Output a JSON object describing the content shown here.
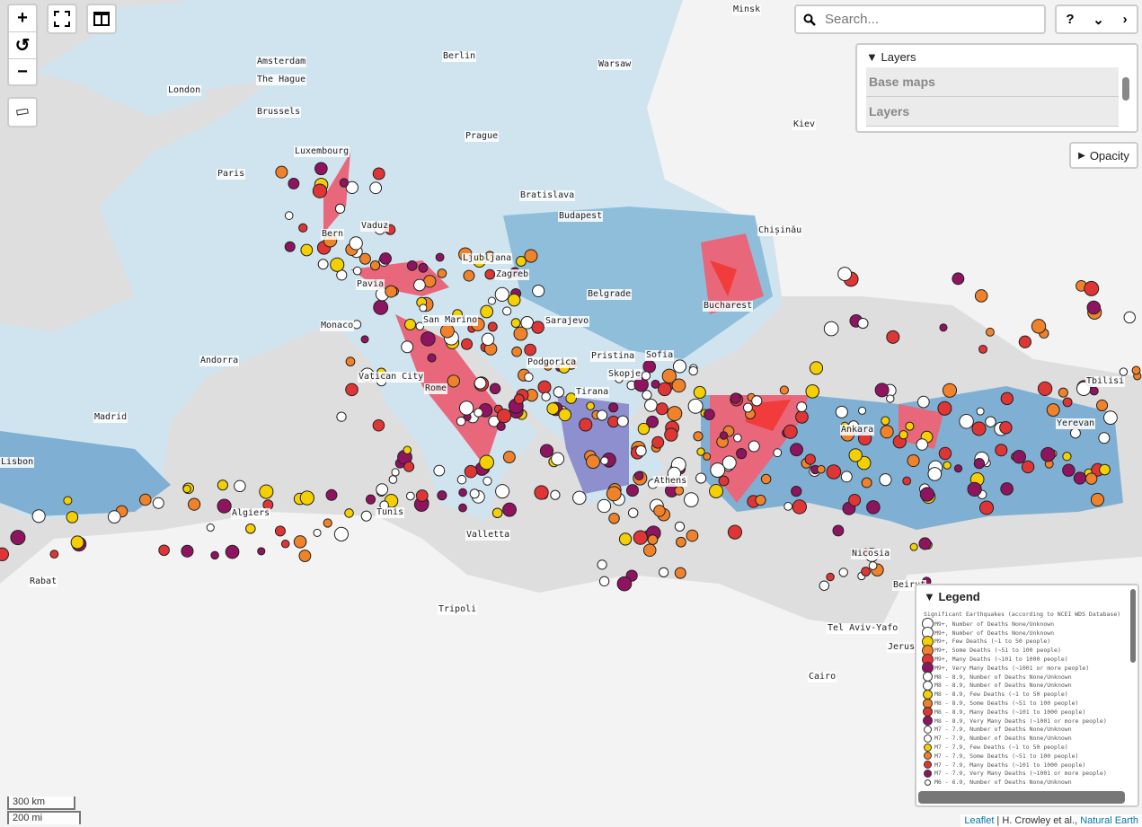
{
  "controls": {
    "zoom_in": "+",
    "reset": "↺",
    "zoom_out": "−",
    "fullscreen_icon": "fullscreen-icon",
    "split_icon": "split-view-icon",
    "measure_icon": "ruler-icon"
  },
  "search": {
    "placeholder": "Search...",
    "value": ""
  },
  "tools": {
    "help": "?",
    "collapse": "⌄",
    "next": "›"
  },
  "layers_panel": {
    "title": "Layers",
    "items": [
      {
        "label": "Base maps"
      },
      {
        "label": "Layers"
      }
    ]
  },
  "opacity": {
    "label": "Opacity"
  },
  "legend": {
    "title": "Legend",
    "subtitle": "Significant Earthquakes (according to NCEI WDS Database)",
    "items": [
      {
        "label": "M9+, Number of Deaths None/Unknown",
        "color": "#ffffff"
      },
      {
        "label": "M9+, Number of Deaths None/Unknown",
        "color": "#ffffff"
      },
      {
        "label": "M9+, Few Deaths (~1 to 50 people)",
        "color": "#f5d000"
      },
      {
        "label": "M9+, Some Deaths (~51 to 100 people)",
        "color": "#f0822a"
      },
      {
        "label": "M9+, Many Deaths (~101 to 1000 people)",
        "color": "#e03535"
      },
      {
        "label": "M9+, Very Many Deaths (~1001 or more people)",
        "color": "#8e1460"
      },
      {
        "label": "M8 - 8.9, Number of Deaths None/Unknown",
        "color": "#ffffff"
      },
      {
        "label": "M8 - 8.9, Number of Deaths None/Unknown",
        "color": "#ffffff"
      },
      {
        "label": "M8 - 8.9, Few Deaths (~1 to 50 people)",
        "color": "#f5d000"
      },
      {
        "label": "M8 - 8.9, Some Deaths (~51 to 100 people)",
        "color": "#f0822a"
      },
      {
        "label": "M8 - 8.9, Many Deaths (~101 to 1000 people)",
        "color": "#e03535"
      },
      {
        "label": "M8 - 8.9, Very Many Deaths (~1001 or more people)",
        "color": "#8e1460"
      },
      {
        "label": "M7 - 7.9, Number of Deaths None/Unknown",
        "color": "#ffffff"
      },
      {
        "label": "M7 - 7.9, Number of Deaths None/Unknown",
        "color": "#ffffff"
      },
      {
        "label": "M7 - 7.9, Few Deaths (~1 to 50 people)",
        "color": "#f5d000"
      },
      {
        "label": "M7 - 7.9, Some Deaths (~51 to 100 people)",
        "color": "#f0822a"
      },
      {
        "label": "M7 - 7.9, Many Deaths (~101 to 1000 people)",
        "color": "#e03535"
      },
      {
        "label": "M7 - 7.9, Very Many Deaths (~1001 or more people)",
        "color": "#8e1460"
      },
      {
        "label": "M6 - 6.9, Number of Deaths None/Unknown",
        "color": "#ffffff"
      }
    ]
  },
  "cities": [
    "Minsk",
    "Berlin",
    "Amsterdam",
    "The Hague",
    "Warsaw",
    "London",
    "Brussels",
    "Prague",
    "Kiev",
    "Luxembourg",
    "Paris",
    "Bratislava",
    "Budapest",
    "Vaduz",
    "Bern",
    "Chișinău",
    "Ljubljana",
    "Zagreb",
    "Pavia",
    "Belgrade",
    "Bucharest",
    "San Marino",
    "Sarajevo",
    "Monaco",
    "Sofia",
    "Pristina",
    "Andorra",
    "Podgorica",
    "Skopje",
    "Vatican City",
    "Rome",
    "Tirana",
    "Tbilisi",
    "Madrid",
    "Yerevan",
    "Ankara",
    "Athens",
    "Algiers",
    "Tunis",
    "Valletta",
    "Nicosia",
    "Rabat",
    "Beirut",
    "Tripoli",
    "Tel Aviv-Yafo",
    "Jerusalem",
    "Cairo",
    "Lisbon"
  ],
  "scale": {
    "metric": "300 km",
    "imperial": "200 mi"
  },
  "attribution": {
    "leaflet": "Leaflet",
    "authors": "H. Crowley et al.",
    "source": "Natural Earth"
  },
  "hazard_colors": [
    "#d4e6f0",
    "#a9cde3",
    "#7fb0d3",
    "#8d8fce",
    "#e8677a",
    "#f23b3b"
  ]
}
